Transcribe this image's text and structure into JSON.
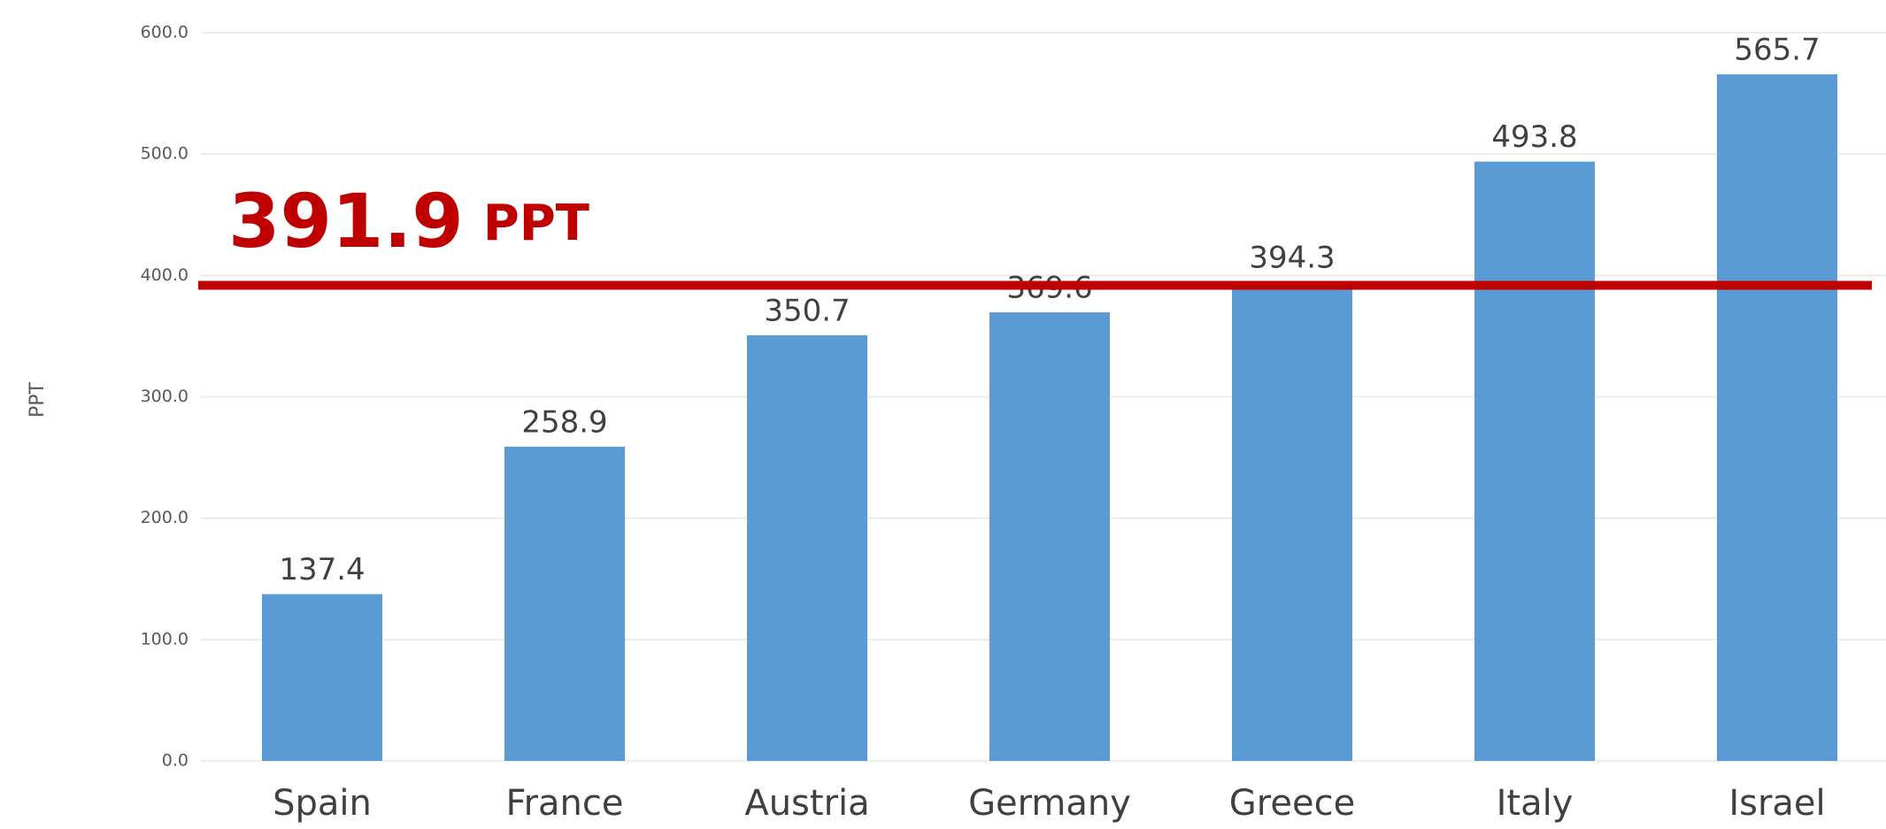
{
  "chart_data": {
    "type": "bar",
    "y_label": "PPT",
    "categories": [
      "Spain",
      "France",
      "Austria",
      "Germany",
      "Greece",
      "Italy",
      "Israel"
    ],
    "values": [
      137.4,
      258.9,
      350.7,
      369.6,
      394.3,
      493.8,
      565.7
    ],
    "color": "#5b9bd5",
    "ylim": [
      0,
      600
    ],
    "yticks": [
      {
        "value": 0,
        "label": "0.0"
      },
      {
        "value": 100,
        "label": "100.0"
      },
      {
        "value": 200,
        "label": "200.0"
      },
      {
        "value": 300,
        "label": "300.0"
      },
      {
        "value": 400,
        "label": "400.0"
      },
      {
        "value": 500,
        "label": "500.0"
      },
      {
        "value": 600,
        "label": "600.0"
      }
    ],
    "grid": true,
    "reference_line": {
      "value": 391.9,
      "label": "391.9",
      "unit": "PPT",
      "color": "#c00000"
    }
  }
}
